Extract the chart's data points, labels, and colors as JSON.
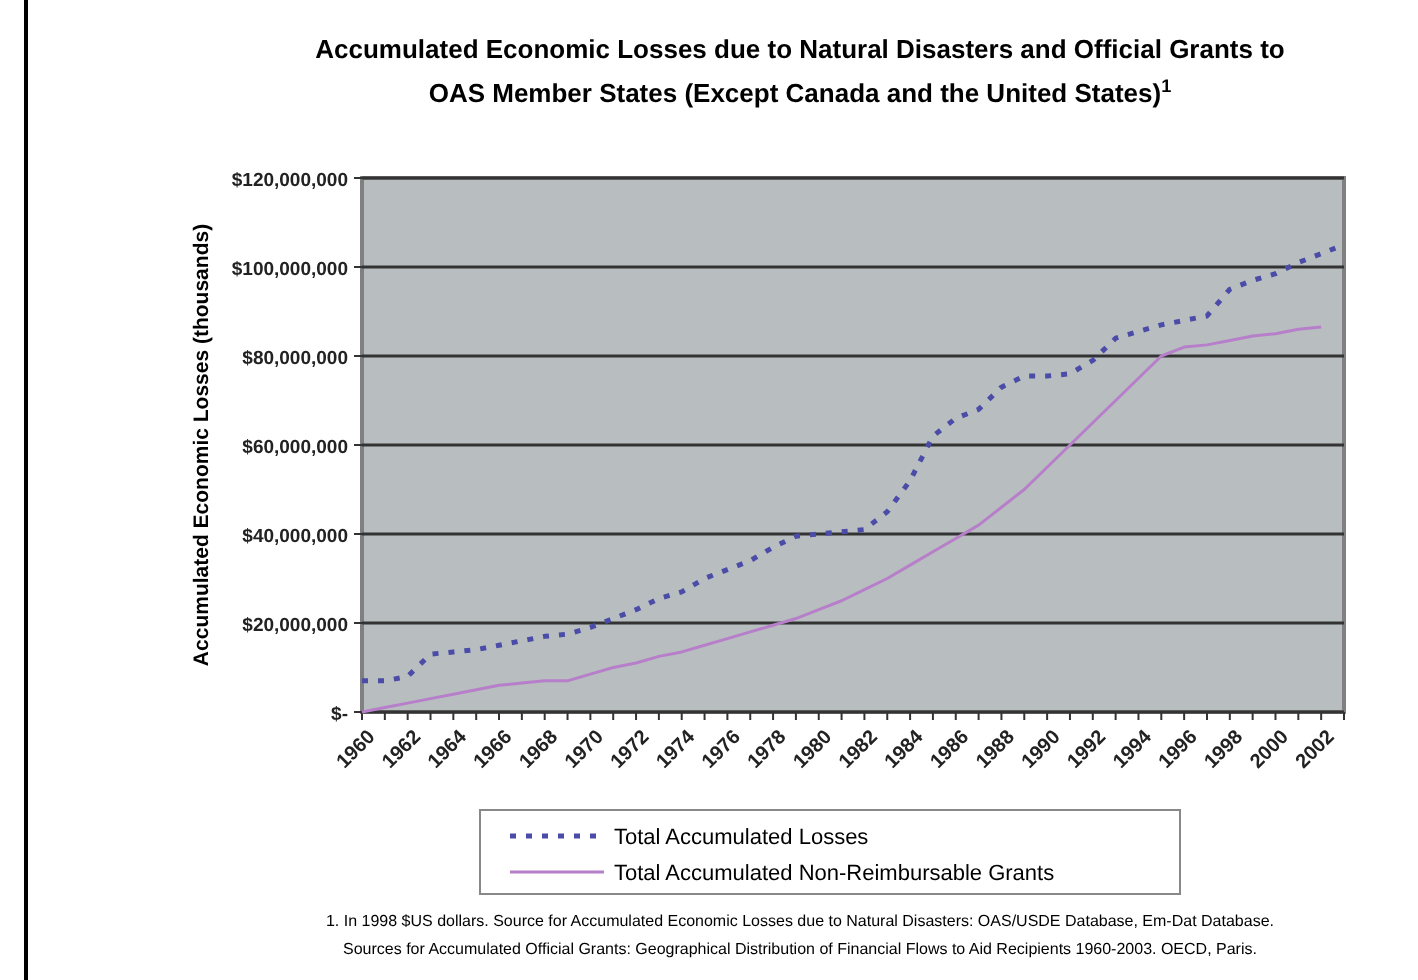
{
  "chart_data": {
    "type": "line",
    "title": "Accumulated Economic Losses due to Natural Disasters and Official Grants to OAS Member States (Except Canada and the United States)$^{1}$",
    "ylabel": "Accumulated Economic Losses (thousands)",
    "categories": [
      "1960",
      null,
      "1962",
      null,
      "1964",
      null,
      "1966",
      null,
      "1968",
      null,
      "1970",
      null,
      "1972",
      null,
      "1974",
      null,
      "1976",
      null,
      "1978",
      null,
      "1980",
      null,
      "1982",
      null,
      "1984",
      null,
      "1986",
      null,
      "1988",
      null,
      "1990",
      null,
      "1992",
      null,
      "1994",
      null,
      "1996",
      null,
      "1998",
      null,
      "2000",
      null,
      "2002",
      null
    ],
    "series": [
      {
        "name": "Total Accumulated Losses",
        "color": "#4b4ba8",
        "line_style": "dotted",
        "values": [
          7000000,
          7000000,
          8000000,
          13000000,
          13500000,
          14000000,
          15000000,
          16000000,
          17000000,
          17500000,
          19000000,
          21000000,
          23000000,
          25500000,
          27000000,
          30000000,
          32000000,
          34000000,
          37000000,
          39500000,
          40000000,
          40500000,
          41000000,
          45000000,
          52000000,
          62000000,
          66000000,
          68000000,
          73000000,
          75500000,
          75500000,
          76000000,
          79000000,
          84000000,
          85500000,
          87000000,
          88000000,
          89000000,
          95000000,
          97000000,
          98500000,
          101000000,
          103000000,
          105000000
        ]
      },
      {
        "name": "Total Accumulated Non-Reimbursable Grants",
        "color": "#b77fc9",
        "line_style": "solid",
        "values": [
          0,
          1000000,
          2000000,
          3000000,
          4000000,
          5000000,
          6000000,
          6500000,
          7000000,
          7000000,
          8500000,
          10000000,
          11000000,
          12500000,
          13500000,
          15000000,
          16500000,
          18000000,
          19500000,
          21000000,
          23000000,
          25000000,
          27500000,
          30000000,
          33000000,
          36000000,
          39000000,
          42000000,
          46000000,
          50000000,
          55000000,
          60000000,
          65000000,
          70000000,
          75000000,
          80000000,
          82000000,
          82500000,
          83500000,
          84500000,
          85000000,
          86000000,
          86500000,
          null
        ]
      }
    ],
    "ylim": [
      0,
      120000000
    ],
    "yticks": [
      {
        "value": 0,
        "label": "$-"
      },
      {
        "value": 20000000,
        "label": "$20,000,000"
      },
      {
        "value": 40000000,
        "label": "$40,000,000"
      },
      {
        "value": 60000000,
        "label": "$60,000,000"
      },
      {
        "value": 80000000,
        "label": "$80,000,000"
      },
      {
        "value": 100000000,
        "label": "$100,000,000"
      },
      {
        "value": 120000000,
        "label": "$120,000,000"
      }
    ],
    "grid": "y",
    "legend": "bottom",
    "marker": "none",
    "annotations": [
      "1. In 1998 $US dollars. Source for Accumulated Economic Losses due to Natural Disasters: OAS/USDE Database, Em-Dat Database.",
      "Sources for Accumulated Official Grants: Geographical Distribution of Financial Flows to Aid Recipients 1960-2003.  OECD, Paris."
    ]
  }
}
